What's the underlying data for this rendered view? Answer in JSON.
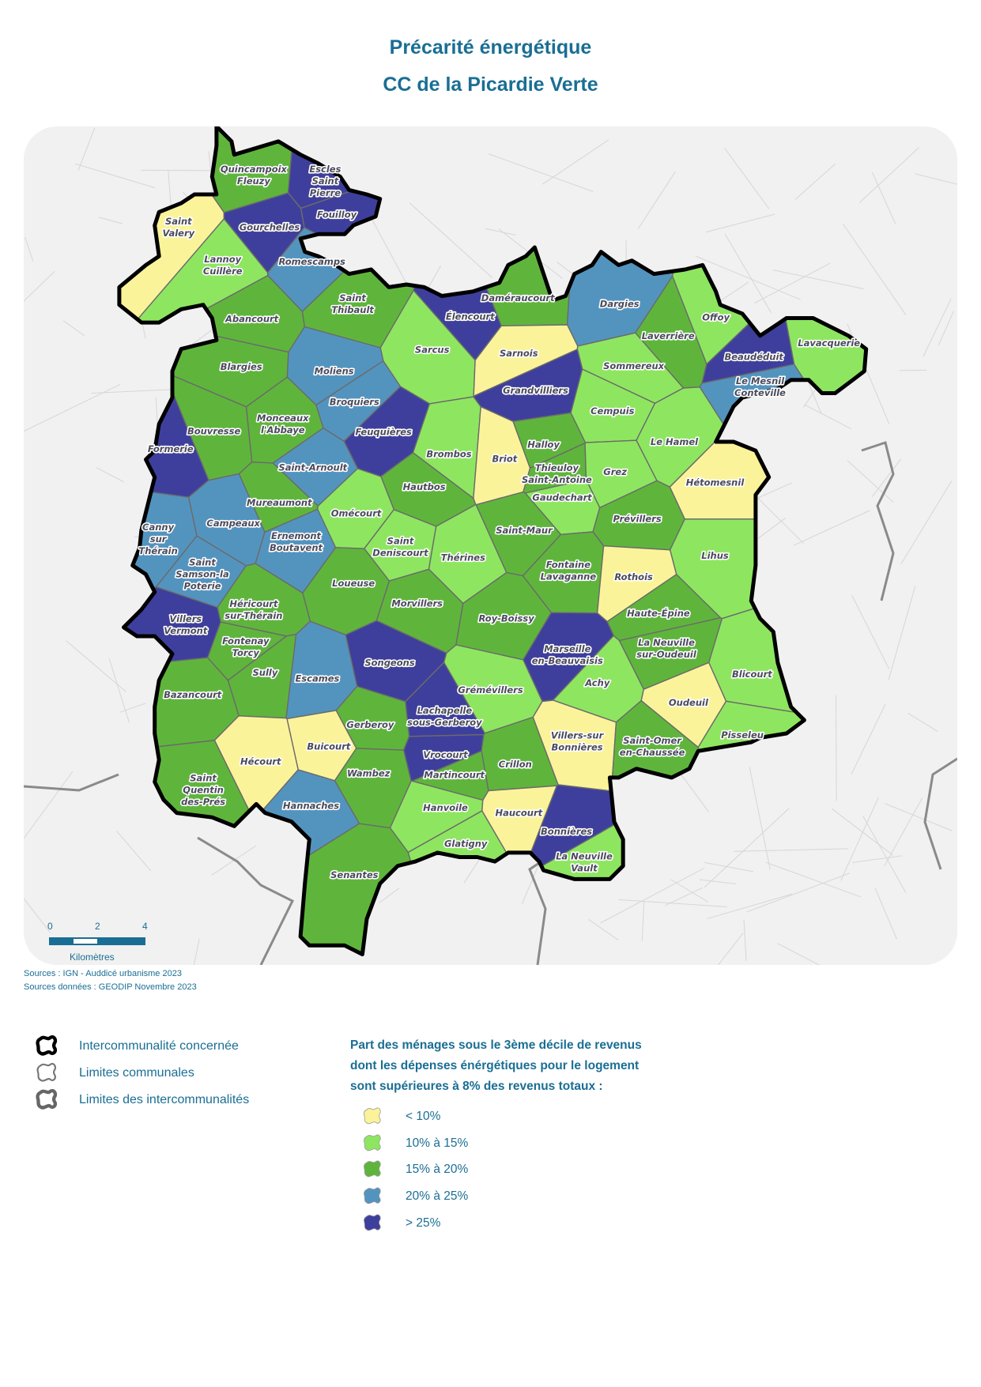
{
  "title": {
    "line1": "Précarité énergétique",
    "line2": "CC de la Picardie Verte"
  },
  "colors": {
    "text": "#1a6e94",
    "boundary": "#000000",
    "commune_limits": "#6b6b6b",
    "interco_limits": "#8a8a8a",
    "basemap": "#f0f0f0"
  },
  "scale": {
    "ticks": [
      "0",
      "2",
      "4"
    ],
    "unit": "Kilomètres"
  },
  "sources": {
    "line1": "Sources : IGN - Auddicé urbanisme 2023",
    "line2": "Sources données : GEODIP Novembre 2023"
  },
  "legend_boundaries": [
    {
      "label": "Intercommunalité concernée",
      "icon": "thick-black-outline"
    },
    {
      "label": "Limites communales",
      "icon": "thin-gray-outline"
    },
    {
      "label": "Limites des intercommunalités",
      "icon": "thick-gray-outline"
    }
  ],
  "legend_classes_title": [
    "Part des ménages sous le 3ème décile de revenus",
    "dont les dépenses énérgétiques pour le logement",
    "sont supérieures à 8% des revenus totaux :"
  ],
  "classes": [
    {
      "label": "< 10%",
      "color": "#fbf39a"
    },
    {
      "label": "10% à 15%",
      "color": "#8ee660"
    },
    {
      "label": "15% à 20%",
      "color": "#5fb53c"
    },
    {
      "label": "20% à 25%",
      "color": "#5394bf"
    },
    {
      "label": "> 25%",
      "color": "#3e3f9c"
    }
  ],
  "communes": [
    {
      "lines": [
        "Quincampoix",
        "Fleuzy"
      ],
      "class": 2
    },
    {
      "lines": [
        "Escles",
        "Saint",
        "Pierre"
      ],
      "class": 4
    },
    {
      "lines": [
        "Fouilloy"
      ],
      "class": 4
    },
    {
      "lines": [
        "Saint",
        "Valery"
      ],
      "class": 0
    },
    {
      "lines": [
        "Gourchelles"
      ],
      "class": 4
    },
    {
      "lines": [
        "Lannoy",
        "Cuillère"
      ],
      "class": 1
    },
    {
      "lines": [
        "Romescamps"
      ],
      "class": 3
    },
    {
      "lines": [
        "Saint",
        "Thibault"
      ],
      "class": 2
    },
    {
      "lines": [
        "Abancourt"
      ],
      "class": 2
    },
    {
      "lines": [
        "Élencourt"
      ],
      "class": 4
    },
    {
      "lines": [
        "Daméraucourt"
      ],
      "class": 2
    },
    {
      "lines": [
        "Dargies"
      ],
      "class": 3
    },
    {
      "lines": [
        "Offoy"
      ],
      "class": 1
    },
    {
      "lines": [
        "Laverrière"
      ],
      "class": 2
    },
    {
      "lines": [
        "Lavacquerie"
      ],
      "class": 1
    },
    {
      "lines": [
        "Beaudéduit"
      ],
      "class": 4
    },
    {
      "lines": [
        "Le Mesnil",
        "Conteville"
      ],
      "class": 3
    },
    {
      "lines": [
        "Sarcus"
      ],
      "class": 1
    },
    {
      "lines": [
        "Sarnois"
      ],
      "class": 0
    },
    {
      "lines": [
        "Sommereux"
      ],
      "class": 1
    },
    {
      "lines": [
        "Grandvilliers"
      ],
      "class": 4
    },
    {
      "lines": [
        "Cempuis"
      ],
      "class": 1
    },
    {
      "lines": [
        "Blargies"
      ],
      "class": 2
    },
    {
      "lines": [
        "Moliens"
      ],
      "class": 3
    },
    {
      "lines": [
        "Broquiers"
      ],
      "class": 3
    },
    {
      "lines": [
        "Feuquières"
      ],
      "class": 4
    },
    {
      "lines": [
        "Monceaux",
        "l'Abbaye"
      ],
      "class": 2
    },
    {
      "lines": [
        "Bouvresse"
      ],
      "class": 2
    },
    {
      "lines": [
        "Formerie"
      ],
      "class": 4
    },
    {
      "lines": [
        "Saint-Arnoult"
      ],
      "class": 3
    },
    {
      "lines": [
        "Brombos"
      ],
      "class": 1
    },
    {
      "lines": [
        "Briot"
      ],
      "class": 0
    },
    {
      "lines": [
        "Halloy"
      ],
      "class": 2
    },
    {
      "lines": [
        "Thieuloy",
        "Saint-Antoine"
      ],
      "class": 2
    },
    {
      "lines": [
        "Le Hamel"
      ],
      "class": 1
    },
    {
      "lines": [
        "Grez"
      ],
      "class": 1
    },
    {
      "lines": [
        "Hétomesnil"
      ],
      "class": 0
    },
    {
      "lines": [
        "Gaudechart"
      ],
      "class": 1
    },
    {
      "lines": [
        "Hautbos"
      ],
      "class": 2
    },
    {
      "lines": [
        "Mureaumont"
      ],
      "class": 2
    },
    {
      "lines": [
        "Omécourt"
      ],
      "class": 1
    },
    {
      "lines": [
        "Campeaux"
      ],
      "class": 3
    },
    {
      "lines": [
        "Canny",
        "sur",
        "Thérain"
      ],
      "class": 3
    },
    {
      "lines": [
        "Ernemont",
        "Boutavent"
      ],
      "class": 3
    },
    {
      "lines": [
        "Saint",
        "Deniscourt"
      ],
      "class": 1
    },
    {
      "lines": [
        "Saint-Maur"
      ],
      "class": 2
    },
    {
      "lines": [
        "Thérines"
      ],
      "class": 1
    },
    {
      "lines": [
        "Prévillers"
      ],
      "class": 2
    },
    {
      "lines": [
        "Lihus"
      ],
      "class": 1
    },
    {
      "lines": [
        "Saint",
        "Samson-la",
        "Poterie"
      ],
      "class": 3
    },
    {
      "lines": [
        "Loueuse"
      ],
      "class": 2
    },
    {
      "lines": [
        "Fontaine",
        "Lavaganne"
      ],
      "class": 2
    },
    {
      "lines": [
        "Rothois"
      ],
      "class": 0
    },
    {
      "lines": [
        "Héricourt",
        "sur-Thérain"
      ],
      "class": 2
    },
    {
      "lines": [
        "Morvillers"
      ],
      "class": 2
    },
    {
      "lines": [
        "Roy-Boissy"
      ],
      "class": 2
    },
    {
      "lines": [
        "Haute-Épine"
      ],
      "class": 2
    },
    {
      "lines": [
        "Villers",
        "Vermont"
      ],
      "class": 4
    },
    {
      "lines": [
        "Marseille",
        "en-Beauvaisis"
      ],
      "class": 4
    },
    {
      "lines": [
        "La Neuville",
        "sur-Oudeuil"
      ],
      "class": 2
    },
    {
      "lines": [
        "Fontenay",
        "Torcy"
      ],
      "class": 2
    },
    {
      "lines": [
        "Sully"
      ],
      "class": 2
    },
    {
      "lines": [
        "Songeons"
      ],
      "class": 4
    },
    {
      "lines": [
        "Escames"
      ],
      "class": 3
    },
    {
      "lines": [
        "Achy"
      ],
      "class": 1
    },
    {
      "lines": [
        "Blicourt"
      ],
      "class": 1
    },
    {
      "lines": [
        "Bazancourt"
      ],
      "class": 2
    },
    {
      "lines": [
        "Grémévillers"
      ],
      "class": 1
    },
    {
      "lines": [
        "Oudeuil"
      ],
      "class": 0
    },
    {
      "lines": [
        "Lachapelle",
        "sous-Gerberoy"
      ],
      "class": 4
    },
    {
      "lines": [
        "Gerberoy"
      ],
      "class": 2
    },
    {
      "lines": [
        "Buicourt"
      ],
      "class": 0
    },
    {
      "lines": [
        "Pisseleu"
      ],
      "class": 1
    },
    {
      "lines": [
        "Villers-sur",
        "Bonnières"
      ],
      "class": 0
    },
    {
      "lines": [
        "Saint-Omer",
        "en-Chaussée"
      ],
      "class": 2
    },
    {
      "lines": [
        "Hécourt"
      ],
      "class": 0
    },
    {
      "lines": [
        "Vrocourt"
      ],
      "class": 4
    },
    {
      "lines": [
        "Crillon"
      ],
      "class": 2
    },
    {
      "lines": [
        "Wambez"
      ],
      "class": 2
    },
    {
      "lines": [
        "Martincourt"
      ],
      "class": 2
    },
    {
      "lines": [
        "Saint",
        "Quentin",
        "des-Prés"
      ],
      "class": 2
    },
    {
      "lines": [
        "Hannaches"
      ],
      "class": 3
    },
    {
      "lines": [
        "Hanvoile"
      ],
      "class": 1
    },
    {
      "lines": [
        "Haucourt"
      ],
      "class": 0
    },
    {
      "lines": [
        "Bonnières"
      ],
      "class": 4
    },
    {
      "lines": [
        "Glatigny"
      ],
      "class": 1
    },
    {
      "lines": [
        "La Neuville",
        "Vault"
      ],
      "class": 1
    },
    {
      "lines": [
        "Senantes"
      ],
      "class": 2
    }
  ]
}
